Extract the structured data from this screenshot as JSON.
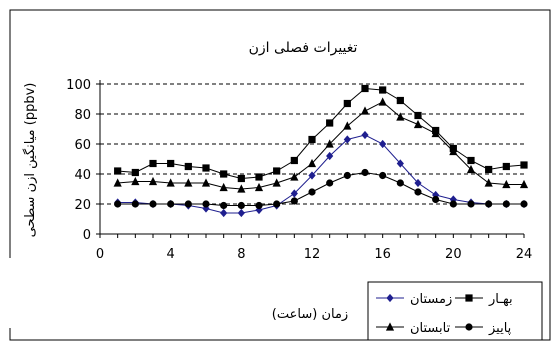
{
  "chart_data": {
    "type": "line",
    "title": "تغییرات فصلی ازن",
    "xlabel": "زمان (ساعت)",
    "ylabel": "میانگین ازن سطحی (ppbv)",
    "xlim": [
      0,
      24
    ],
    "ylim": [
      0,
      100
    ],
    "x_ticks": [
      0,
      4,
      8,
      12,
      16,
      20,
      24
    ],
    "y_ticks": [
      0,
      20,
      40,
      60,
      80,
      100
    ],
    "grid": "horizontal-dashed",
    "legend_position": "bottom-right",
    "x": [
      1,
      2,
      3,
      4,
      5,
      6,
      7,
      8,
      9,
      10,
      11,
      12,
      13,
      14,
      15,
      16,
      17,
      18,
      19,
      20,
      21,
      22,
      23,
      24
    ],
    "series": [
      {
        "name": "بهـار",
        "marker": "square",
        "color": "#000000",
        "values": [
          42,
          41,
          47,
          47,
          45,
          44,
          40,
          37,
          38,
          42,
          49,
          63,
          74,
          87,
          97,
          96,
          89,
          79,
          69,
          57,
          49,
          43,
          45,
          46
        ]
      },
      {
        "name": "تابستان",
        "marker": "triangle",
        "color": "#000000",
        "values": [
          34,
          35,
          35,
          34,
          34,
          34,
          31,
          30,
          31,
          34,
          38,
          47,
          60,
          72,
          82,
          88,
          78,
          73,
          67,
          55,
          43,
          34,
          33,
          33
        ]
      },
      {
        "name": "زمستان",
        "marker": "diamond",
        "color": "#1f1f8f",
        "values": [
          21,
          21,
          20,
          20,
          19,
          17,
          14,
          14,
          16,
          19,
          27,
          39,
          52,
          63,
          66,
          60,
          47,
          34,
          26,
          23,
          21,
          20,
          20,
          20
        ]
      },
      {
        "name": "پاییز",
        "marker": "circle",
        "color": "#000000",
        "values": [
          20,
          20,
          20,
          20,
          20,
          20,
          19,
          19,
          19,
          20,
          22,
          28,
          34,
          39,
          41,
          39,
          34,
          28,
          23,
          20,
          20,
          20,
          20,
          20
        ]
      }
    ]
  }
}
